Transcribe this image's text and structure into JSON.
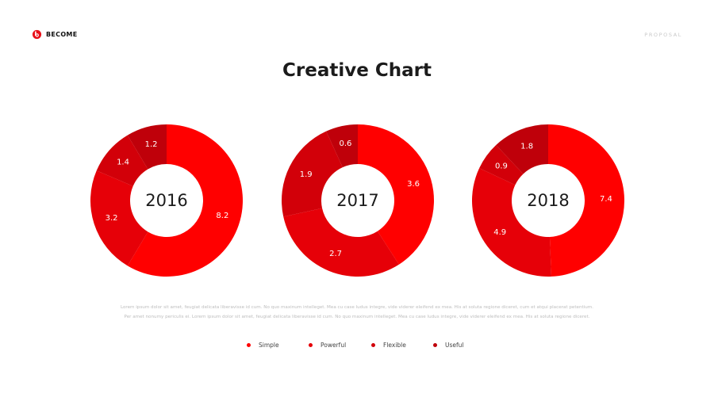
{
  "brand": {
    "name": "BECOME",
    "tagline": "PROPOSAL",
    "logo_icon": "b-circle-logo",
    "accent": "#E8111A"
  },
  "header": {
    "title": "Creative Chart"
  },
  "body_text": "Lorem ipsum dolor sit amet, feugiat delicata liberavisse id cum. No quo maxinum intelleget. Mea cu case ludus integre, vide viderer eleifend ex mea. His at soluta regione diceret, cum et atqui placerat petentium. Per amet nonumy periculis ei. Lorem ipsum dolor sit amet, feugiat delicata liberavisse id cum. No quo maxinum intelleget. Mea cu case ludus integre, vide viderer eleifend ex mea. His at soluta regione diceret.",
  "legend": [
    {
      "label": "Simple",
      "color": "#FF0000"
    },
    {
      "label": "Powerful",
      "color": "#E60008"
    },
    {
      "label": "Flexible",
      "color": "#D20009"
    },
    {
      "label": "Useful",
      "color": "#BF000A"
    }
  ],
  "chart_data": [
    {
      "type": "pie",
      "center_label": "2016",
      "categories": [
        "Simple",
        "Powerful",
        "Flexible",
        "Useful"
      ],
      "values": [
        8.2,
        3.2,
        1.4,
        1.2
      ],
      "labels": [
        "8.2",
        "3.2",
        "1.4",
        "1.2"
      ]
    },
    {
      "type": "pie",
      "center_label": "2017",
      "categories": [
        "Simple",
        "Powerful",
        "Flexible",
        "Useful"
      ],
      "values": [
        3.6,
        2.7,
        1.9,
        0.6
      ],
      "labels": [
        "3.6",
        "2.7",
        "1.9",
        "0.6"
      ]
    },
    {
      "type": "pie",
      "center_label": "2018",
      "categories": [
        "Simple",
        "Powerful",
        "Flexible",
        "Useful"
      ],
      "values": [
        7.4,
        4.9,
        0.9,
        1.8
      ],
      "labels": [
        "7.4",
        "4.9",
        "0.9",
        "1.8"
      ]
    }
  ]
}
